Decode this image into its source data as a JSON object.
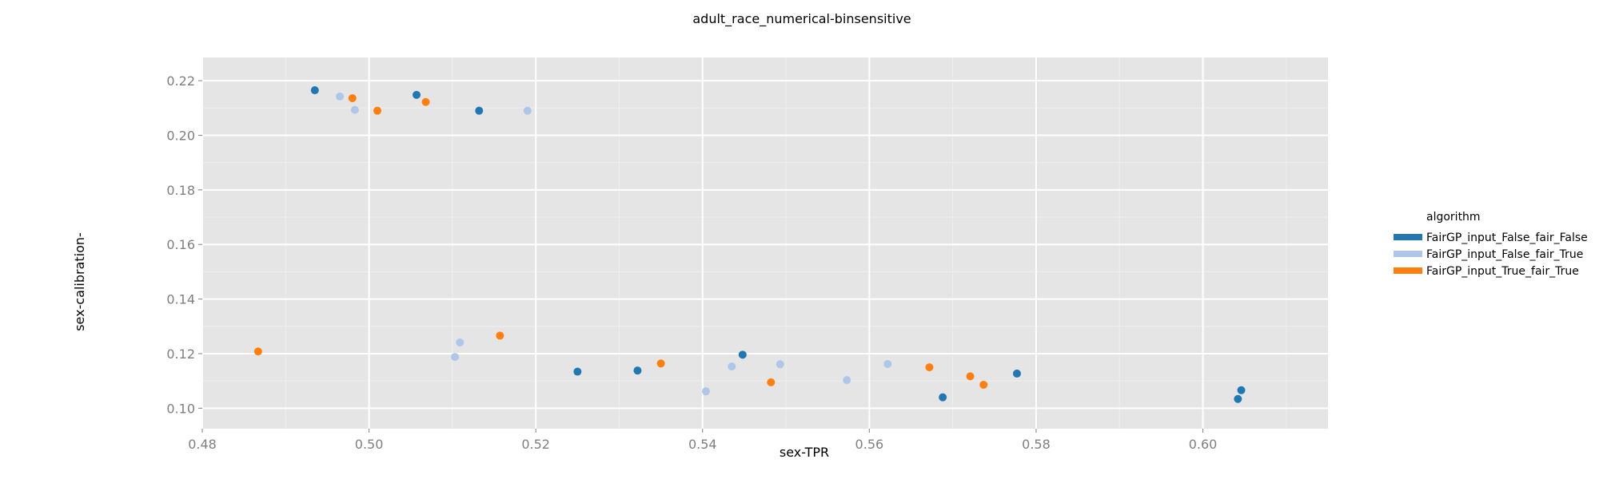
{
  "chart_data": {
    "type": "scatter",
    "title": "adult_race_numerical-binsensitive",
    "xlabel": "sex-TPR",
    "ylabel": "sex-calibration-",
    "xlim": [
      0.48,
      0.615
    ],
    "ylim": [
      0.0925,
      0.2285
    ],
    "xticks": [
      0.48,
      0.5,
      0.52,
      0.54,
      0.56,
      0.58,
      0.6
    ],
    "xtick_labels": [
      "0.48",
      "0.50",
      "0.52",
      "0.54",
      "0.56",
      "0.58",
      "0.60"
    ],
    "yticks": [
      0.1,
      0.12,
      0.14,
      0.16,
      0.18,
      0.2,
      0.22
    ],
    "ytick_labels": [
      "0.10",
      "0.12",
      "0.14",
      "0.16",
      "0.18",
      "0.20",
      "0.22"
    ],
    "grid": true,
    "legend_title": "algorithm",
    "legend_position": "right",
    "series": [
      {
        "name": "FairGP_input_False_fair_False",
        "color": "#1f77b4",
        "points": [
          [
            0.4935,
            0.2165
          ],
          [
            0.5057,
            0.2148
          ],
          [
            0.5132,
            0.209
          ],
          [
            0.525,
            0.1134
          ],
          [
            0.5322,
            0.1138
          ],
          [
            0.5448,
            0.1196
          ],
          [
            0.5688,
            0.104
          ],
          [
            0.5777,
            0.1127
          ],
          [
            0.6042,
            0.1034
          ],
          [
            0.6046,
            0.1066
          ]
        ]
      },
      {
        "name": "FairGP_input_False_fair_True",
        "color": "#aec7e8",
        "points": [
          [
            0.4965,
            0.2142
          ],
          [
            0.4983,
            0.2093
          ],
          [
            0.519,
            0.209
          ],
          [
            0.5103,
            0.1188
          ],
          [
            0.5109,
            0.1241
          ],
          [
            0.5404,
            0.1062
          ],
          [
            0.5435,
            0.1153
          ],
          [
            0.5493,
            0.1161
          ],
          [
            0.5573,
            0.1103
          ],
          [
            0.5622,
            0.1162
          ]
        ]
      },
      {
        "name": "FairGP_input_True_fair_True",
        "color": "#ff7f0e",
        "points": [
          [
            0.4867,
            0.1208
          ],
          [
            0.498,
            0.2136
          ],
          [
            0.501,
            0.209
          ],
          [
            0.5068,
            0.2122
          ],
          [
            0.5157,
            0.1266
          ],
          [
            0.535,
            0.1164
          ],
          [
            0.5482,
            0.1095
          ],
          [
            0.5672,
            0.115
          ],
          [
            0.5721,
            0.1117
          ],
          [
            0.5737,
            0.1086
          ]
        ]
      }
    ]
  }
}
